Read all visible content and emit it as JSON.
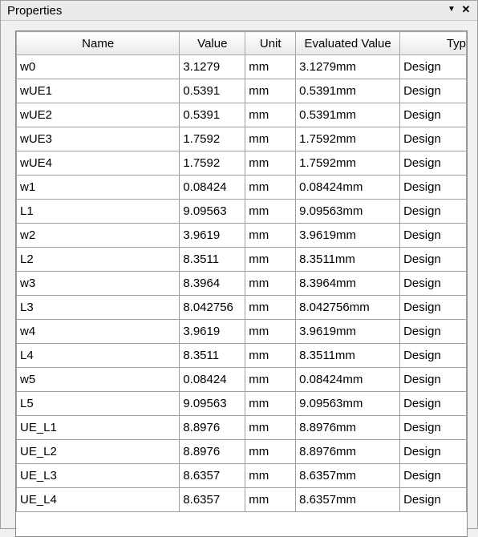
{
  "panel": {
    "title": "Properties",
    "pin_icon": "pin-down-arrow-icon",
    "close_icon": "close-icon"
  },
  "table": {
    "columns": [
      "Name",
      "Value",
      "Unit",
      "Evaluated Value",
      "Typ"
    ],
    "rows": [
      {
        "name": "w0",
        "value": "3.1279",
        "unit": "mm",
        "evaluated": "3.1279mm",
        "type": "Design"
      },
      {
        "name": "wUE1",
        "value": "0.5391",
        "unit": "mm",
        "evaluated": "0.5391mm",
        "type": "Design"
      },
      {
        "name": "wUE2",
        "value": "0.5391",
        "unit": "mm",
        "evaluated": "0.5391mm",
        "type": "Design"
      },
      {
        "name": "wUE3",
        "value": "1.7592",
        "unit": "mm",
        "evaluated": "1.7592mm",
        "type": "Design"
      },
      {
        "name": "wUE4",
        "value": "1.7592",
        "unit": "mm",
        "evaluated": "1.7592mm",
        "type": "Design"
      },
      {
        "name": "w1",
        "value": "0.08424",
        "unit": "mm",
        "evaluated": "0.08424mm",
        "type": "Design"
      },
      {
        "name": "L1",
        "value": "9.09563",
        "unit": "mm",
        "evaluated": "9.09563mm",
        "type": "Design"
      },
      {
        "name": "w2",
        "value": "3.9619",
        "unit": "mm",
        "evaluated": "3.9619mm",
        "type": "Design"
      },
      {
        "name": "L2",
        "value": "8.3511",
        "unit": "mm",
        "evaluated": "8.3511mm",
        "type": "Design"
      },
      {
        "name": "w3",
        "value": "8.3964",
        "unit": "mm",
        "evaluated": "8.3964mm",
        "type": "Design"
      },
      {
        "name": "L3",
        "value": "8.042756",
        "unit": "mm",
        "evaluated": "8.042756mm",
        "type": "Design"
      },
      {
        "name": "w4",
        "value": "3.9619",
        "unit": "mm",
        "evaluated": "3.9619mm",
        "type": "Design"
      },
      {
        "name": "L4",
        "value": "8.3511",
        "unit": "mm",
        "evaluated": "8.3511mm",
        "type": "Design"
      },
      {
        "name": "w5",
        "value": "0.08424",
        "unit": "mm",
        "evaluated": "0.08424mm",
        "type": "Design"
      },
      {
        "name": "L5",
        "value": "9.09563",
        "unit": "mm",
        "evaluated": "9.09563mm",
        "type": "Design"
      },
      {
        "name": "UE_L1",
        "value": "8.8976",
        "unit": "mm",
        "evaluated": "8.8976mm",
        "type": "Design"
      },
      {
        "name": "UE_L2",
        "value": "8.8976",
        "unit": "mm",
        "evaluated": "8.8976mm",
        "type": "Design"
      },
      {
        "name": "UE_L3",
        "value": "8.6357",
        "unit": "mm",
        "evaluated": "8.6357mm",
        "type": "Design"
      },
      {
        "name": "UE_L4",
        "value": "8.6357",
        "unit": "mm",
        "evaluated": "8.6357mm",
        "type": "Design"
      }
    ]
  }
}
